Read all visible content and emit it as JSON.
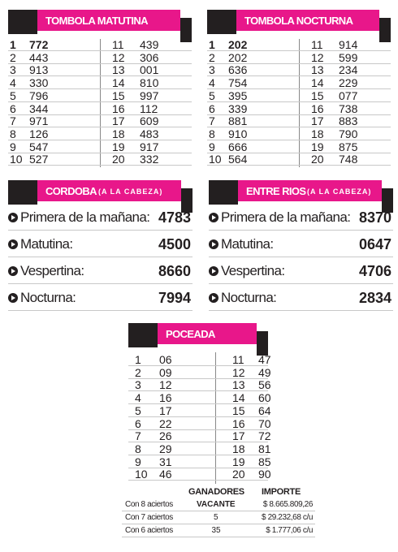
{
  "tombolas": [
    {
      "title": "TOMBOLA MATUTINA",
      "rows": [
        [
          "1",
          "772",
          "11",
          "439"
        ],
        [
          "2",
          "443",
          "12",
          "306"
        ],
        [
          "3",
          "913",
          "13",
          "001"
        ],
        [
          "4",
          "330",
          "14",
          "810"
        ],
        [
          "5",
          "796",
          "15",
          "997"
        ],
        [
          "6",
          "344",
          "16",
          "112"
        ],
        [
          "7",
          "971",
          "17",
          "609"
        ],
        [
          "8",
          "126",
          "18",
          "483"
        ],
        [
          "9",
          "547",
          "19",
          "917"
        ],
        [
          "10",
          "527",
          "20",
          "332"
        ]
      ]
    },
    {
      "title": "TOMBOLA NOCTURNA",
      "rows": [
        [
          "1",
          "202",
          "11",
          "914"
        ],
        [
          "2",
          "202",
          "12",
          "599"
        ],
        [
          "3",
          "636",
          "13",
          "234"
        ],
        [
          "4",
          "754",
          "14",
          "229"
        ],
        [
          "5",
          "395",
          "15",
          "077"
        ],
        [
          "6",
          "339",
          "16",
          "738"
        ],
        [
          "7",
          "881",
          "17",
          "883"
        ],
        [
          "8",
          "910",
          "18",
          "790"
        ],
        [
          "9",
          "666",
          "19",
          "875"
        ],
        [
          "10",
          "564",
          "20",
          "748"
        ]
      ]
    }
  ],
  "cabezas": [
    {
      "title": "CORDOBA",
      "subtitle": "(A LA CABEZA)",
      "rows": [
        [
          "Primera de la mañana:",
          "4783"
        ],
        [
          "Matutina:",
          "4500"
        ],
        [
          "Vespertina:",
          "8660"
        ],
        [
          "Nocturna:",
          "7994"
        ]
      ]
    },
    {
      "title": "ENTRE RIOS",
      "subtitle": "(A LA CABEZA)",
      "rows": [
        [
          "Primera de la mañana:",
          "8370"
        ],
        [
          "Matutina:",
          "0647"
        ],
        [
          "Vespertina:",
          "4706"
        ],
        [
          "Nocturna:",
          "2834"
        ]
      ]
    }
  ],
  "poceada": {
    "title": "POCEADA",
    "rows": [
      [
        "1",
        "06",
        "11",
        "47"
      ],
      [
        "2",
        "09",
        "12",
        "49"
      ],
      [
        "3",
        "12",
        "13",
        "56"
      ],
      [
        "4",
        "16",
        "14",
        "60"
      ],
      [
        "5",
        "17",
        "15",
        "64"
      ],
      [
        "6",
        "22",
        "16",
        "70"
      ],
      [
        "7",
        "26",
        "17",
        "72"
      ],
      [
        "8",
        "29",
        "18",
        "81"
      ],
      [
        "9",
        "31",
        "19",
        "85"
      ],
      [
        "10",
        "46",
        "20",
        "90"
      ]
    ],
    "prizes": {
      "headers": [
        "GANADORES",
        "IMPORTE"
      ],
      "rows": [
        [
          "Con 8 aciertos",
          "VACANTE",
          "$ 8.665.809,26"
        ],
        [
          "Con 7 aciertos",
          "5",
          "$ 29.232,68 c/u"
        ],
        [
          "Con 6 aciertos",
          "35",
          "$ 1.777,06 c/u"
        ]
      ]
    }
  }
}
